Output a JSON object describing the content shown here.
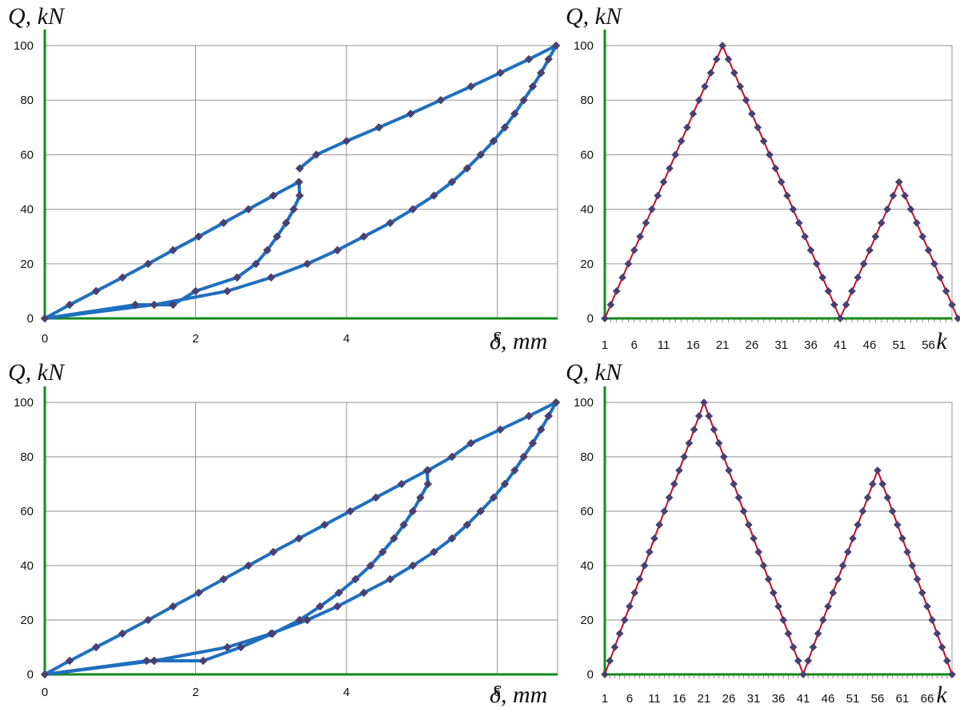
{
  "colors": {
    "axis": "#16881a",
    "grid": "#8c8c8c",
    "hysteresis_line": "#1f6fbf",
    "load_line": "#c0102a",
    "marker": "#4a4070"
  },
  "chart_data": [
    {
      "type": "line",
      "title": "",
      "ylabel": "Q, kN",
      "xlabel": "δ, mm",
      "xlim": [
        0,
        6.8
      ],
      "ylim": [
        0,
        100
      ],
      "xticks": [
        "0",
        "2",
        "4",
        "6"
      ],
      "yticks": [
        "0",
        "20",
        "40",
        "60",
        "80",
        "100"
      ],
      "grid": true,
      "series": [
        {
          "name": "Q-δ loading path",
          "x": [
            0,
            0.33,
            0.68,
            1.03,
            1.37,
            1.7,
            2.04,
            2.37,
            2.7,
            3.03,
            3.37,
            3.38,
            3.3,
            3.2,
            3.08,
            2.95,
            2.8,
            2.55,
            2.0,
            1.7,
            1.2,
            0,
            1.45,
            2.42,
            3.0,
            3.48,
            3.88,
            4.23,
            4.58,
            4.88,
            5.16,
            5.4,
            5.6,
            5.78,
            5.95,
            6.1,
            6.23,
            6.35,
            6.47,
            6.58,
            6.68,
            6.78,
            6.42,
            6.04,
            5.65,
            5.25,
            4.85,
            4.43,
            4.0,
            3.6,
            3.38
          ],
          "y": [
            0,
            5,
            10,
            15,
            20,
            25,
            30,
            35,
            40,
            45,
            50,
            45,
            40,
            35,
            30,
            25,
            20,
            15,
            10,
            5,
            5,
            0,
            5,
            10,
            15,
            20,
            25,
            30,
            35,
            40,
            45,
            50,
            55,
            60,
            65,
            70,
            75,
            80,
            85,
            90,
            95,
            100,
            95,
            90,
            85,
            80,
            75,
            70,
            65,
            60,
            55
          ]
        }
      ]
    },
    {
      "type": "line",
      "title": "",
      "ylabel": "Q, kN",
      "xlabel": "k",
      "xlim": [
        1,
        60
      ],
      "ylim": [
        0,
        100
      ],
      "xticks": [
        "1",
        "6",
        "11",
        "16",
        "21",
        "26",
        "31",
        "36",
        "41",
        "46",
        "51",
        "56"
      ],
      "yticks": [
        "0",
        "20",
        "40",
        "60",
        "80",
        "100"
      ],
      "grid": true,
      "series": [
        {
          "name": "Q by step k",
          "x": [
            1,
            2,
            3,
            4,
            5,
            6,
            7,
            8,
            9,
            10,
            11,
            12,
            13,
            14,
            15,
            16,
            17,
            18,
            19,
            20,
            21,
            22,
            23,
            24,
            25,
            26,
            27,
            28,
            29,
            30,
            31,
            32,
            33,
            34,
            35,
            36,
            37,
            38,
            39,
            40,
            41,
            42,
            43,
            44,
            45,
            46,
            47,
            48,
            49,
            50,
            51,
            52,
            53,
            54,
            55,
            56,
            57,
            58,
            59,
            60,
            61
          ],
          "y": [
            0,
            5,
            10,
            15,
            20,
            25,
            30,
            35,
            40,
            45,
            50,
            55,
            60,
            65,
            70,
            75,
            80,
            85,
            90,
            95,
            100,
            95,
            90,
            85,
            80,
            75,
            70,
            65,
            60,
            55,
            50,
            45,
            40,
            35,
            30,
            25,
            20,
            15,
            10,
            5,
            0,
            5,
            10,
            15,
            20,
            25,
            30,
            35,
            40,
            45,
            50,
            45,
            40,
            35,
            30,
            25,
            20,
            15,
            10,
            5,
            0
          ]
        }
      ]
    },
    {
      "type": "line",
      "title": "",
      "ylabel": "Q, kN",
      "xlabel": "δ, mm",
      "xlim": [
        0,
        6.8
      ],
      "ylim": [
        0,
        100
      ],
      "xticks": [
        "0",
        "2",
        "4",
        "6"
      ],
      "yticks": [
        "0",
        "20",
        "40",
        "60",
        "80",
        "100"
      ],
      "grid": true,
      "series": [
        {
          "name": "Q-δ loading path",
          "x": [
            0,
            0.33,
            0.68,
            1.03,
            1.37,
            1.7,
            2.04,
            2.37,
            2.7,
            3.03,
            3.37,
            3.71,
            4.05,
            4.39,
            4.73,
            5.07,
            5.08,
            4.98,
            4.88,
            4.76,
            4.63,
            4.48,
            4.32,
            4.12,
            3.9,
            3.65,
            3.38,
            3.02,
            2.6,
            2.1,
            1.45,
            1.35,
            0,
            1.45,
            2.42,
            3.0,
            3.48,
            3.88,
            4.23,
            4.58,
            4.88,
            5.16,
            5.4,
            5.6,
            5.78,
            5.95,
            6.1,
            6.23,
            6.35,
            6.47,
            6.58,
            6.68,
            6.78,
            6.42,
            6.04,
            5.65,
            5.4,
            5.08
          ],
          "y": [
            0,
            5,
            10,
            15,
            20,
            25,
            30,
            35,
            40,
            45,
            50,
            55,
            60,
            65,
            70,
            75,
            70,
            65,
            60,
            55,
            50,
            45,
            40,
            35,
            30,
            25,
            20,
            15,
            10,
            5,
            5,
            5,
            0,
            5,
            10,
            15,
            20,
            25,
            30,
            35,
            40,
            45,
            50,
            55,
            60,
            65,
            70,
            75,
            80,
            85,
            90,
            95,
            100,
            95,
            90,
            85,
            80,
            75
          ]
        }
      ]
    },
    {
      "type": "line",
      "title": "",
      "ylabel": "Q, kN",
      "xlabel": "k",
      "xlim": [
        1,
        71
      ],
      "ylim": [
        0,
        100
      ],
      "xticks": [
        "1",
        "6",
        "11",
        "16",
        "21",
        "26",
        "31",
        "36",
        "41",
        "46",
        "51",
        "56",
        "61",
        "66"
      ],
      "yticks": [
        "0",
        "20",
        "40",
        "60",
        "80",
        "100"
      ],
      "grid": true,
      "series": [
        {
          "name": "Q by step k",
          "x": [
            1,
            2,
            3,
            4,
            5,
            6,
            7,
            8,
            9,
            10,
            11,
            12,
            13,
            14,
            15,
            16,
            17,
            18,
            19,
            20,
            21,
            22,
            23,
            24,
            25,
            26,
            27,
            28,
            29,
            30,
            31,
            32,
            33,
            34,
            35,
            36,
            37,
            38,
            39,
            40,
            41,
            42,
            43,
            44,
            45,
            46,
            47,
            48,
            49,
            50,
            51,
            52,
            53,
            54,
            55,
            56,
            57,
            58,
            59,
            60,
            61,
            62,
            63,
            64,
            65,
            66,
            67,
            68,
            69,
            70,
            71
          ],
          "y": [
            0,
            5,
            10,
            15,
            20,
            25,
            30,
            35,
            40,
            45,
            50,
            55,
            60,
            65,
            70,
            75,
            80,
            85,
            90,
            95,
            100,
            95,
            90,
            85,
            80,
            75,
            70,
            65,
            60,
            55,
            50,
            45,
            40,
            35,
            30,
            25,
            20,
            15,
            10,
            5,
            0,
            5,
            10,
            15,
            20,
            25,
            30,
            35,
            40,
            45,
            50,
            55,
            60,
            65,
            70,
            75,
            70,
            65,
            60,
            55,
            50,
            45,
            40,
            35,
            30,
            25,
            20,
            15,
            10,
            5,
            0
          ]
        }
      ]
    }
  ]
}
